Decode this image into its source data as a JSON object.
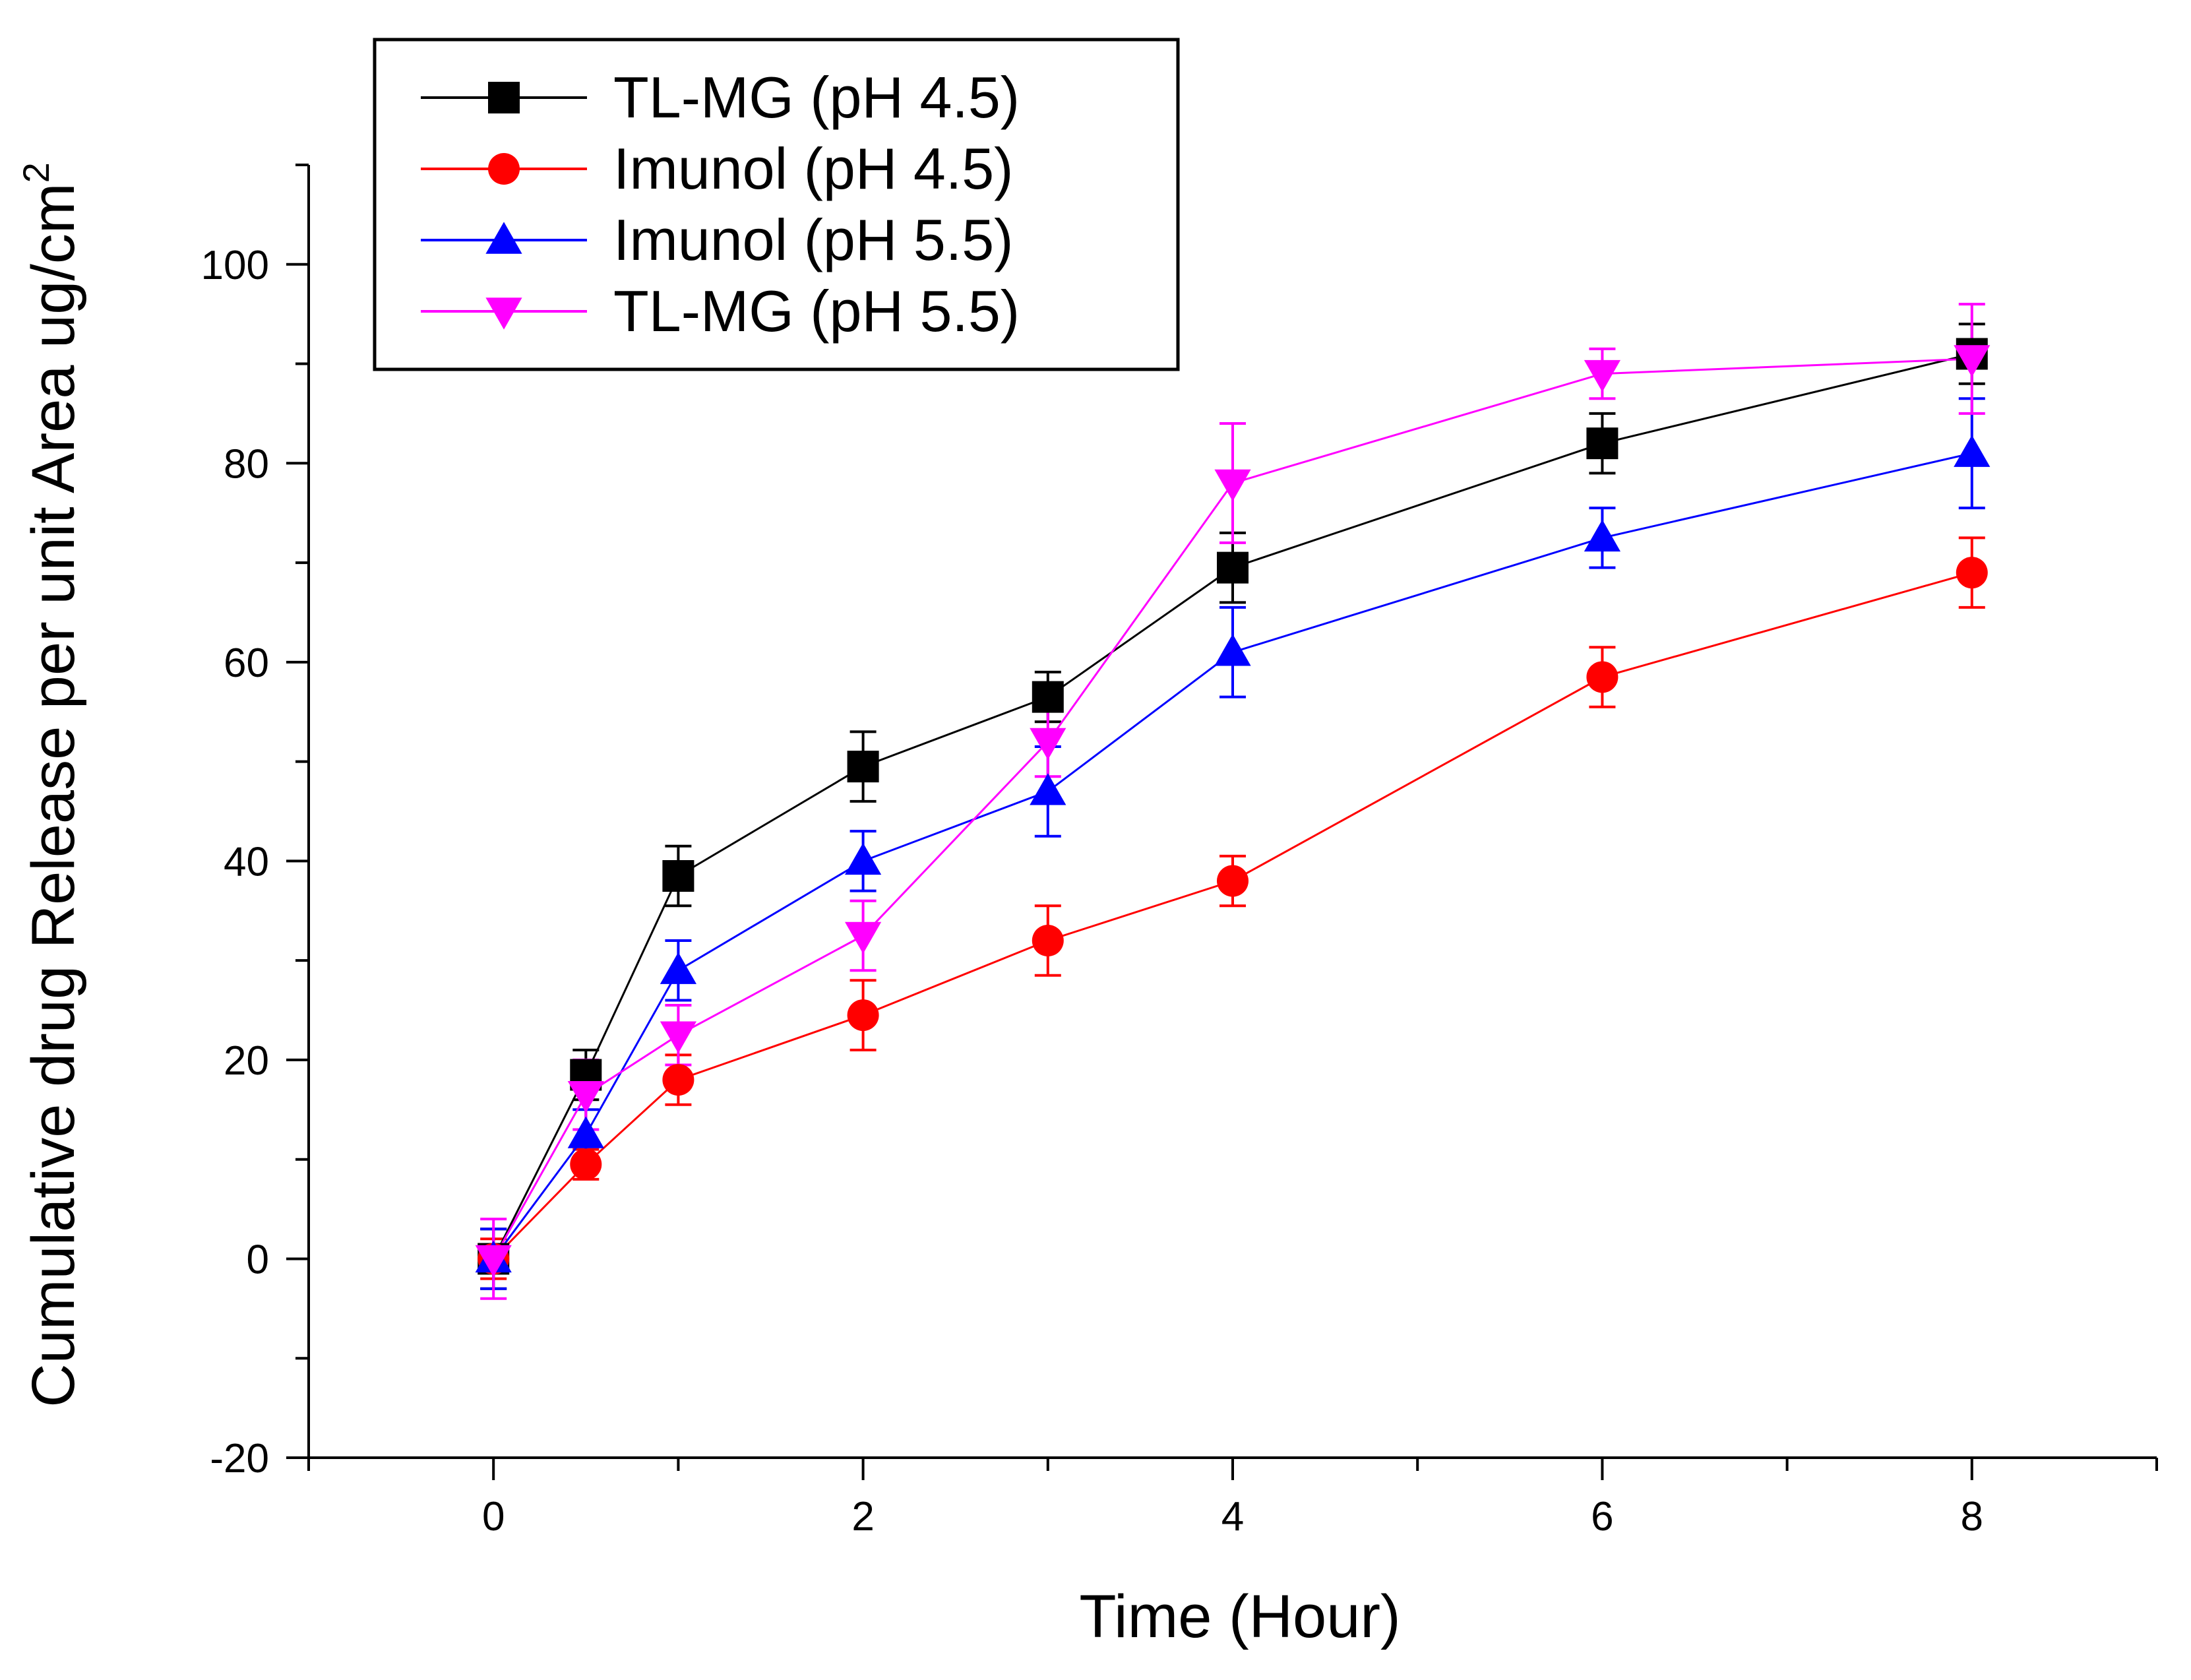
{
  "chart_data": {
    "type": "line",
    "title": "",
    "xlabel": "Time (Hour)",
    "ylabel": "Cumulative drug Release per unit Area ug/cm",
    "ylabel_superscript": "2",
    "xlim": [
      -1,
      9
    ],
    "ylim": [
      -20,
      110
    ],
    "x_ticks": [
      0,
      2,
      4,
      6,
      8
    ],
    "y_ticks": [
      -20,
      0,
      20,
      40,
      60,
      80,
      100
    ],
    "x_tick_labels": [
      "0",
      "2",
      "4",
      "6",
      "8"
    ],
    "y_tick_labels": [
      "-20",
      "0",
      "20",
      "40",
      "60",
      "80",
      "100"
    ],
    "grid": false,
    "legend_position": "top-left",
    "series": [
      {
        "name": "TL-MG (pH 4.5)",
        "color": "#000000",
        "marker": "square",
        "x": [
          0,
          0.5,
          1,
          2,
          3,
          4,
          6,
          8
        ],
        "values": [
          0,
          18.5,
          38.5,
          49.5,
          56.5,
          69.5,
          82,
          91
        ],
        "errors": [
          3,
          2.5,
          3,
          3.5,
          2.5,
          3.5,
          3,
          3
        ]
      },
      {
        "name": "Imunol (pH 4.5)",
        "color": "#ff0000",
        "marker": "circle",
        "x": [
          0,
          0.5,
          1,
          2,
          3,
          4,
          6,
          8
        ],
        "values": [
          0,
          9.5,
          18,
          24.5,
          32,
          38,
          58.5,
          69
        ],
        "errors": [
          2,
          1.5,
          2.5,
          3.5,
          3.5,
          2.5,
          3,
          3.5
        ]
      },
      {
        "name": "Imunol (pH 5.5)",
        "color": "#0000ff",
        "marker": "triangle-up",
        "x": [
          0,
          0.5,
          1,
          2,
          3,
          4,
          6,
          8
        ],
        "values": [
          0,
          12.5,
          29,
          40,
          47,
          61,
          72.5,
          81
        ],
        "errors": [
          3,
          2.5,
          3,
          3,
          4.5,
          4.5,
          3,
          5.5
        ]
      },
      {
        "name": "TL-MG (pH 5.5)",
        "color": "#ff00ff",
        "marker": "triangle-down",
        "x": [
          0,
          0.5,
          1,
          2,
          3,
          4,
          6,
          8
        ],
        "values": [
          0,
          16.5,
          22.5,
          32.5,
          52,
          78,
          89,
          90.5
        ],
        "errors": [
          4,
          3.5,
          3,
          3.5,
          3.5,
          6,
          2.5,
          5.5
        ]
      }
    ]
  }
}
